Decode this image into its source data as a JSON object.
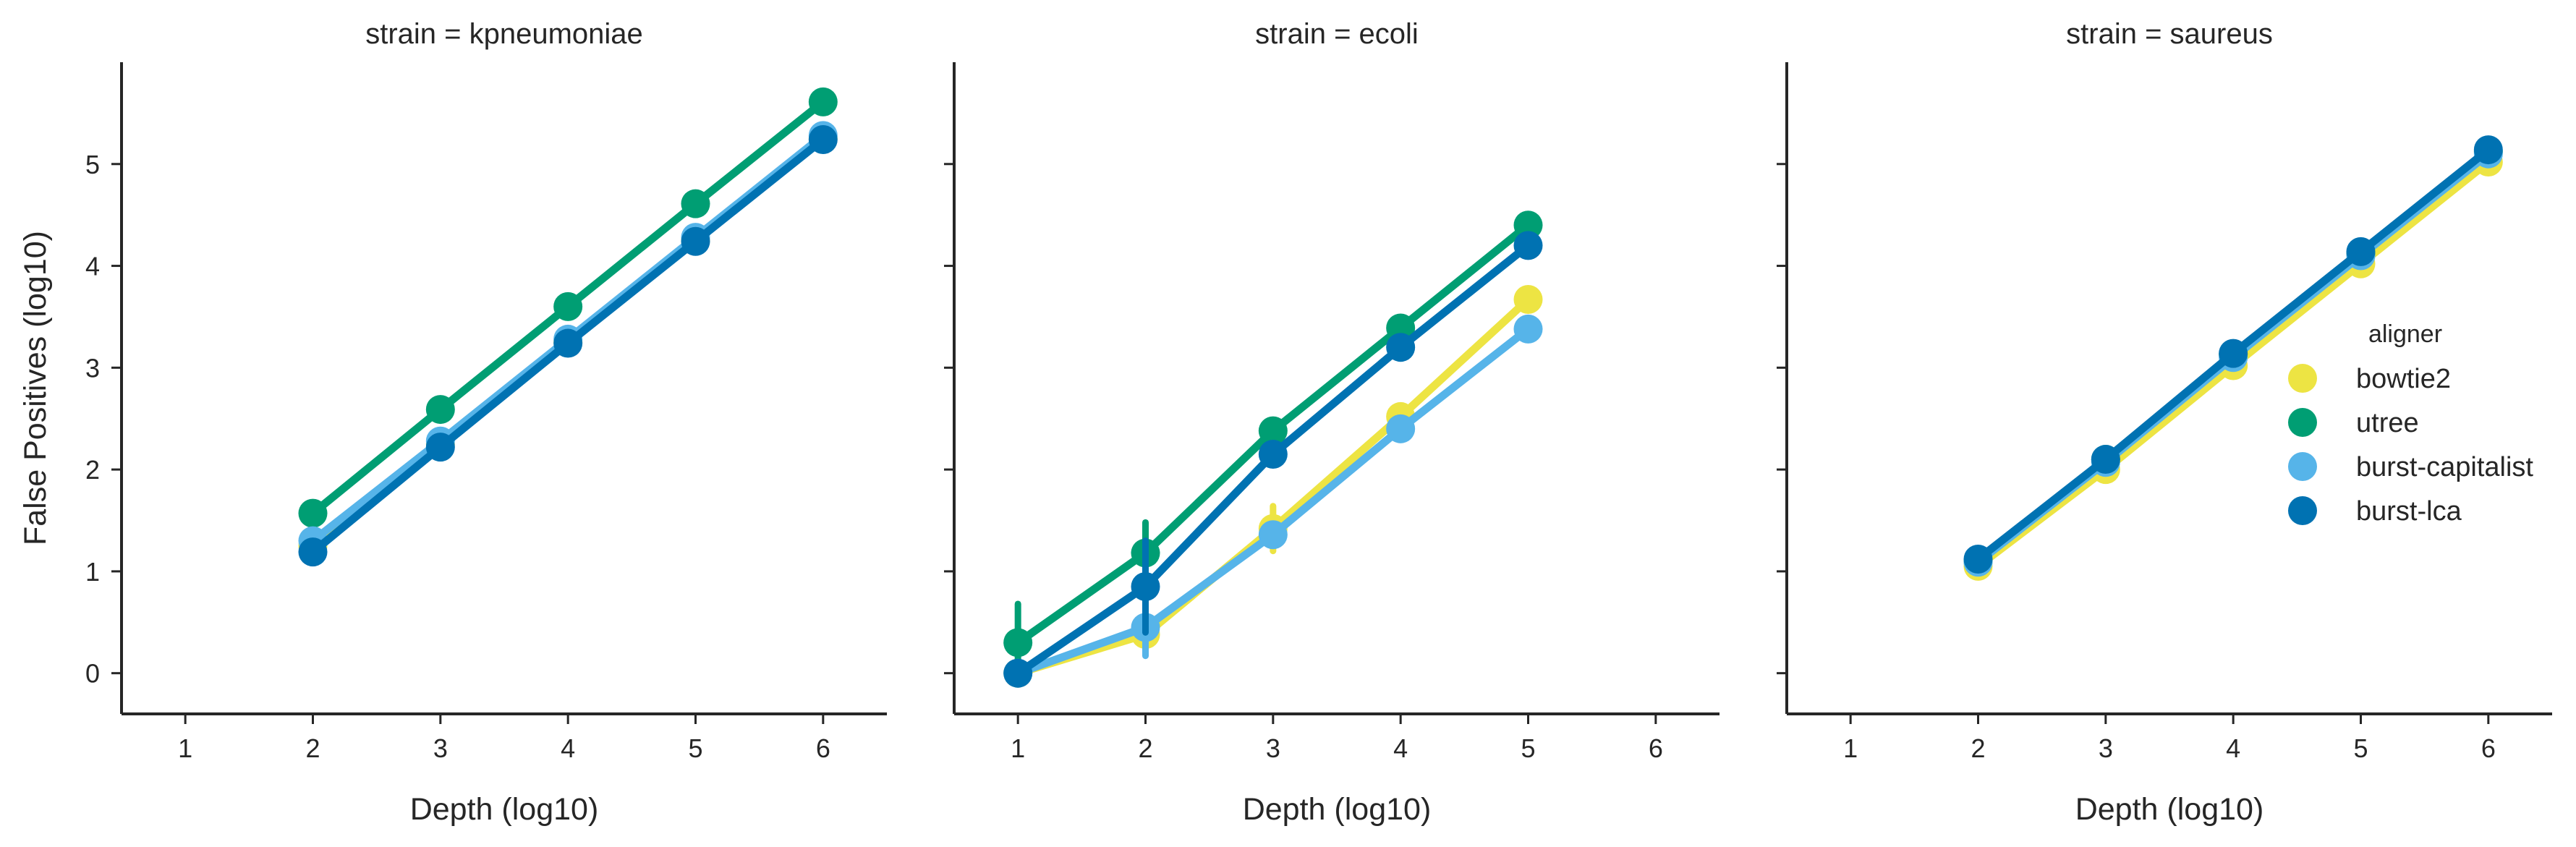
{
  "chart_data": {
    "type": "line",
    "x": [
      1,
      2,
      3,
      4,
      5,
      6
    ],
    "xlim": [
      0.5,
      6.5
    ],
    "ylim": [
      -0.4,
      6.0
    ],
    "yticks": [
      0,
      1,
      2,
      3,
      4,
      5
    ],
    "ylabel": "False Positives (log10)",
    "grid": false,
    "legend": {
      "title": "aligner",
      "placement": "right",
      "entries": [
        {
          "name": "bowtie2",
          "color": "#ede443"
        },
        {
          "name": "utree",
          "color": "#009e73"
        },
        {
          "name": "burst-capitalist",
          "color": "#56b4e9"
        },
        {
          "name": "burst-lca",
          "color": "#0072b2"
        }
      ]
    },
    "panels": [
      {
        "title": "strain = kpneumoniae",
        "xlabel": "Depth (log10)",
        "series": [
          {
            "name": "bowtie2",
            "color": "#ede443",
            "x": [
              2,
              3,
              4,
              5,
              6
            ],
            "y": [
              1.25,
              2.25,
              3.25,
              4.25,
              5.25
            ]
          },
          {
            "name": "utree",
            "color": "#009e73",
            "x": [
              2,
              3,
              4,
              5,
              6
            ],
            "y": [
              1.57,
              2.59,
              3.6,
              4.61,
              5.61
            ]
          },
          {
            "name": "burst-capitalist",
            "color": "#56b4e9",
            "x": [
              2,
              3,
              4,
              5,
              6
            ],
            "y": [
              1.3,
              2.28,
              3.28,
              4.28,
              5.28
            ]
          },
          {
            "name": "burst-lca",
            "color": "#0072b2",
            "x": [
              2,
              3,
              4,
              5,
              6
            ],
            "y": [
              1.19,
              2.22,
              3.24,
              4.24,
              5.24
            ]
          }
        ]
      },
      {
        "title": "strain = ecoli",
        "xlabel": "Depth (log10)",
        "series": [
          {
            "name": "bowtie2",
            "color": "#ede443",
            "x": [
              1,
              2,
              3,
              4,
              5
            ],
            "y": [
              0.0,
              0.38,
              1.42,
              2.52,
              3.67
            ],
            "err": [
              0,
              0.1,
              0.22,
              0.05,
              0.05
            ]
          },
          {
            "name": "utree",
            "color": "#009e73",
            "x": [
              1,
              2,
              3,
              4,
              5
            ],
            "y": [
              0.3,
              1.18,
              2.38,
              3.39,
              4.4
            ],
            "err": [
              0.38,
              0.3,
              0.05,
              0.05,
              0.05
            ]
          },
          {
            "name": "burst-capitalist",
            "color": "#56b4e9",
            "x": [
              1,
              2,
              3,
              4,
              5
            ],
            "y": [
              0.0,
              0.45,
              1.36,
              2.4,
              3.38
            ],
            "err": [
              0,
              0.28,
              0.05,
              0.05,
              0.05
            ]
          },
          {
            "name": "burst-lca",
            "color": "#0072b2",
            "x": [
              1,
              2,
              3,
              4,
              5
            ],
            "y": [
              0.0,
              0.85,
              2.15,
              3.2,
              4.2
            ],
            "err": [
              0,
              0.45,
              0.05,
              0.05,
              0.05
            ]
          }
        ]
      },
      {
        "title": "strain = saureus",
        "xlabel": "Depth (log10)",
        "series": [
          {
            "name": "bowtie2",
            "color": "#ede443",
            "x": [
              2,
              3,
              4,
              5,
              6
            ],
            "y": [
              1.05,
              2.0,
              3.02,
              4.02,
              5.02
            ]
          },
          {
            "name": "utree",
            "color": "#009e73",
            "x": [
              2,
              3,
              4,
              5,
              6
            ],
            "y": [
              1.1,
              2.1,
              3.13,
              4.12,
              5.12
            ]
          },
          {
            "name": "burst-capitalist",
            "color": "#56b4e9",
            "x": [
              2,
              3,
              4,
              5,
              6
            ],
            "y": [
              1.09,
              2.07,
              3.1,
              4.1,
              5.1
            ]
          },
          {
            "name": "burst-lca",
            "color": "#0072b2",
            "x": [
              2,
              3,
              4,
              5,
              6
            ],
            "y": [
              1.12,
              2.1,
              3.14,
              4.14,
              5.14
            ]
          }
        ]
      }
    ]
  }
}
